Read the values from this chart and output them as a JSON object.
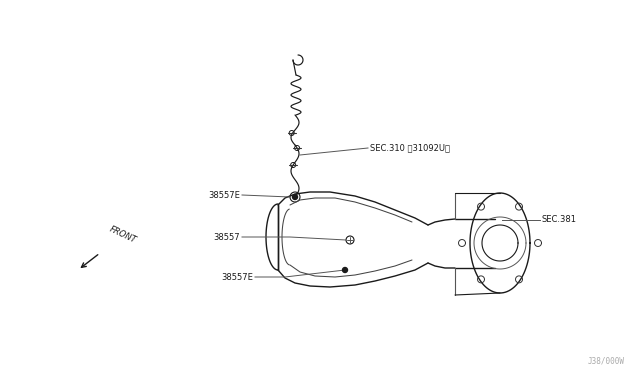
{
  "bg_color": "#ffffff",
  "line_color": "#1a1a1a",
  "label_color": "#1a1a1a",
  "leader_color": "#555555",
  "labels": {
    "sec310": "SEC.310 （31092U）",
    "sec381": "SEC.381",
    "label_38557E_top": "38557E",
    "label_38557": "38557",
    "label_38557E_bot": "38557E",
    "front": "FRONT",
    "part_num": "J38/000W"
  },
  "figsize": [
    6.4,
    3.72
  ],
  "dpi": 100
}
